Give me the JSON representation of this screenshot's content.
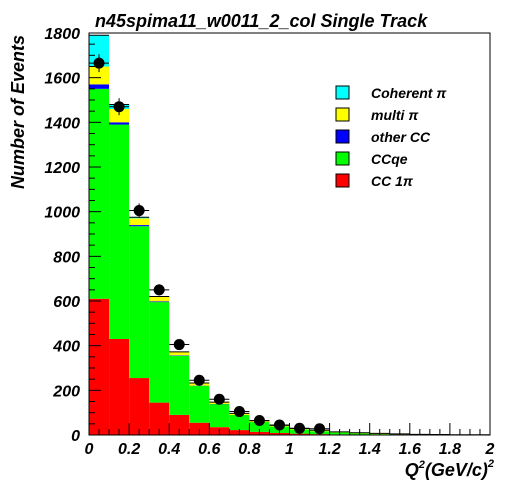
{
  "chart_data": {
    "type": "bar",
    "stacked": true,
    "title": "n45spima11_w0011_2_col Single Track",
    "xlabel": "Q",
    "xlabel_sup1": "2",
    "xlabel_mid": "(GeV/c)",
    "xlabel_sup2": "2",
    "ylabel": "Number of Events",
    "xlim": [
      0,
      2
    ],
    "ylim": [
      0,
      1800
    ],
    "xticks": [
      "0",
      "0.2",
      "0.4",
      "0.6",
      "0.8",
      "1",
      "1.2",
      "1.4",
      "1.6",
      "1.8",
      "2"
    ],
    "xtick_values": [
      0,
      0.2,
      0.4,
      0.6,
      0.8,
      1.0,
      1.2,
      1.4,
      1.6,
      1.8,
      2.0
    ],
    "yticks": [
      "0",
      "200",
      "400",
      "600",
      "800",
      "1000",
      "1200",
      "1400",
      "1600",
      "1800"
    ],
    "ytick_values": [
      0,
      200,
      400,
      600,
      800,
      1000,
      1200,
      1400,
      1600,
      1800
    ],
    "bin_edges": [
      0,
      0.1,
      0.2,
      0.3,
      0.4,
      0.5,
      0.6,
      0.7,
      0.8,
      0.9,
      1.0,
      1.1,
      1.2,
      1.3,
      1.4,
      1.5,
      1.6,
      1.7,
      1.8,
      1.9,
      2.0
    ],
    "legend_position": "top-right",
    "series": [
      {
        "name": "CC 1π",
        "color": "#ff0000",
        "values": [
          610,
          430,
          255,
          145,
          90,
          55,
          35,
          22,
          14,
          9,
          6,
          4,
          3,
          2,
          1,
          1,
          0,
          0,
          0,
          0
        ]
      },
      {
        "name": "CCqe",
        "color": "#00ff00",
        "values": [
          940,
          960,
          680,
          450,
          265,
          165,
          103,
          68,
          44,
          29,
          19,
          13,
          8,
          5,
          3,
          2,
          1,
          1,
          0,
          0
        ]
      },
      {
        "name": "other CC",
        "color": "#0000ff",
        "values": [
          20,
          10,
          5,
          3,
          2,
          1,
          1,
          0,
          0,
          0,
          0,
          0,
          0,
          0,
          0,
          0,
          0,
          0,
          0,
          0
        ]
      },
      {
        "name": "multi π",
        "color": "#ffff00",
        "values": [
          80,
          60,
          30,
          20,
          15,
          12,
          8,
          7,
          6,
          5,
          4,
          4,
          3,
          3,
          3,
          2,
          2,
          1,
          1,
          1
        ]
      },
      {
        "name": "Coherent π",
        "color": "#00ffff",
        "values": [
          140,
          20,
          5,
          2,
          0,
          0,
          0,
          0,
          0,
          0,
          0,
          0,
          0,
          0,
          0,
          0,
          0,
          0,
          0,
          0
        ]
      }
    ],
    "legend_order": [
      "Coherent π",
      "multi π",
      "other CC",
      "CCqe",
      "CC 1π"
    ],
    "data_points": {
      "x": [
        0.05,
        0.15,
        0.25,
        0.35,
        0.45,
        0.55,
        0.65,
        0.75,
        0.85,
        0.95,
        1.05,
        1.15
      ],
      "y": [
        1665,
        1470,
        1005,
        650,
        405,
        245,
        160,
        105,
        65,
        45,
        30,
        28
      ],
      "yerr": [
        40,
        38,
        32,
        25,
        20,
        16,
        13,
        10,
        8,
        7,
        6,
        5
      ]
    }
  }
}
